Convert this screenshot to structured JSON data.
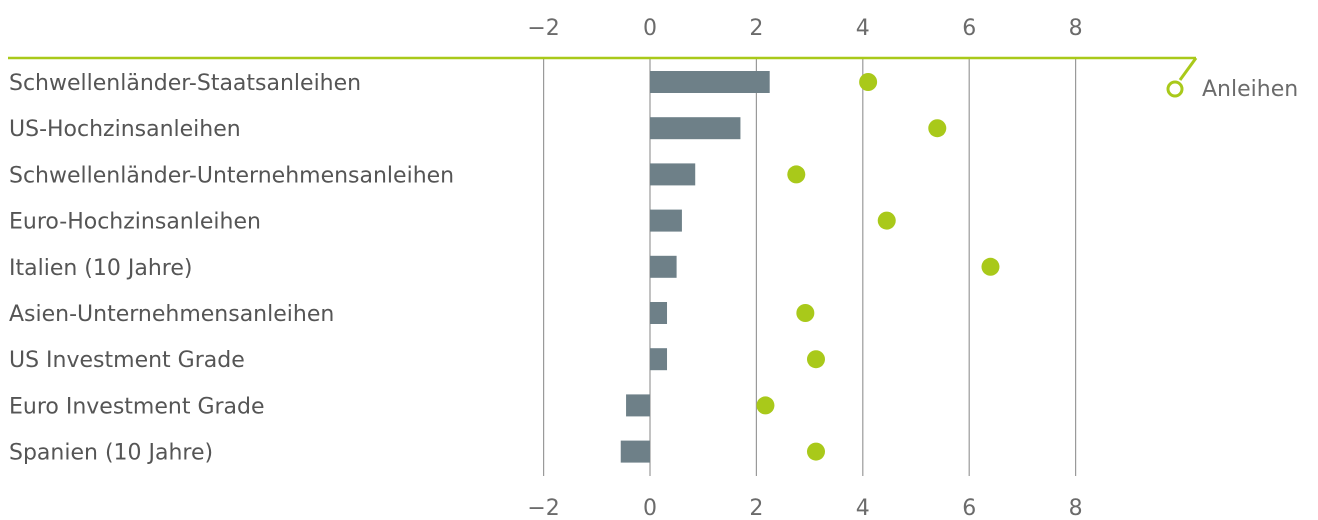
{
  "chart_data": {
    "type": "bar",
    "categories": [
      "Schwellenländer-Staatsanleihen",
      "US-Hochzinsanleihen",
      "Schwellenländer-Unternehmensanleihen",
      "Euro-Hochzinsanleihen",
      "Italien (10 Jahre)",
      "Asien-Unternehmensanleihen",
      "US Investment Grade",
      "Euro Investment Grade",
      "Spanien (10 Jahre)"
    ],
    "series": [
      {
        "values": [
          2.25,
          1.7,
          0.85,
          0.6,
          0.5,
          0.32,
          0.32,
          -0.45,
          -0.55
        ]
      },
      {
        "name": "Anleihen",
        "values": [
          4.1,
          5.4,
          2.75,
          4.45,
          6.4,
          2.92,
          3.12,
          2.17,
          3.12
        ]
      }
    ],
    "xlim": [
      -2,
      8
    ],
    "xticks": [
      "−2",
      "0",
      "2",
      "4",
      "6",
      "8"
    ],
    "xtick_values": [
      -2,
      0,
      2,
      4,
      6,
      8
    ],
    "legend": {
      "label": "Anleihen",
      "placement": "top-right"
    },
    "grid": true,
    "colors": {
      "bar": "#6e8088",
      "dot": "#a9c91a",
      "grid": "#9a9a9a",
      "accent_line": "#a9c91a"
    }
  }
}
